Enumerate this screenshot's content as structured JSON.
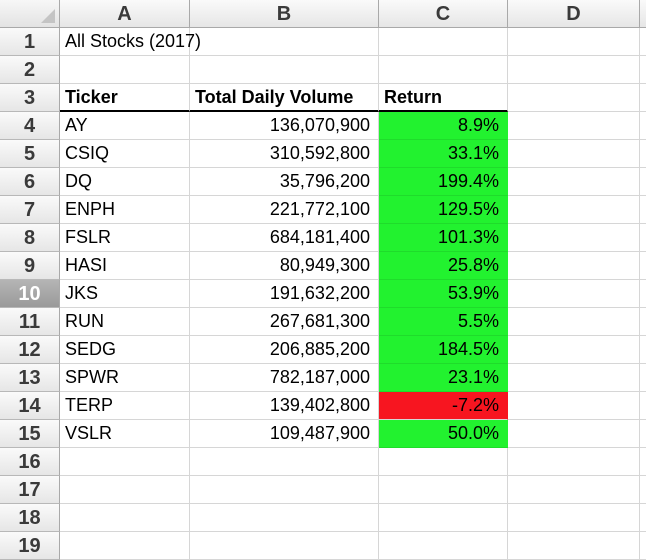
{
  "columns": [
    "A",
    "B",
    "C",
    "D"
  ],
  "rows": [
    "1",
    "2",
    "3",
    "4",
    "5",
    "6",
    "7",
    "8",
    "9",
    "10",
    "11",
    "12",
    "13",
    "14",
    "15",
    "16",
    "17",
    "18",
    "19"
  ],
  "selected_row": "10",
  "title": "All Stocks (2017)",
  "headers": {
    "ticker": "Ticker",
    "volume": "Total Daily Volume",
    "return": "Return"
  },
  "stocks": [
    {
      "ticker": "AY",
      "volume": "136,070,900",
      "return": "8.9%",
      "status": "positive"
    },
    {
      "ticker": "CSIQ",
      "volume": "310,592,800",
      "return": "33.1%",
      "status": "positive"
    },
    {
      "ticker": "DQ",
      "volume": "35,796,200",
      "return": "199.4%",
      "status": "positive"
    },
    {
      "ticker": "ENPH",
      "volume": "221,772,100",
      "return": "129.5%",
      "status": "positive"
    },
    {
      "ticker": "FSLR",
      "volume": "684,181,400",
      "return": "101.3%",
      "status": "positive"
    },
    {
      "ticker": "HASI",
      "volume": "80,949,300",
      "return": "25.8%",
      "status": "positive"
    },
    {
      "ticker": "JKS",
      "volume": "191,632,200",
      "return": "53.9%",
      "status": "positive"
    },
    {
      "ticker": "RUN",
      "volume": "267,681,300",
      "return": "5.5%",
      "status": "positive"
    },
    {
      "ticker": "SEDG",
      "volume": "206,885,200",
      "return": "184.5%",
      "status": "positive"
    },
    {
      "ticker": "SPWR",
      "volume": "782,187,000",
      "return": "23.1%",
      "status": "positive"
    },
    {
      "ticker": "TERP",
      "volume": "139,402,800",
      "return": "-7.2%",
      "status": "negative"
    },
    {
      "ticker": "VSLR",
      "volume": "109,487,900",
      "return": "50.0%",
      "status": "positive"
    }
  ],
  "colors": {
    "positive": "#22f22f",
    "negative": "#f71520"
  }
}
